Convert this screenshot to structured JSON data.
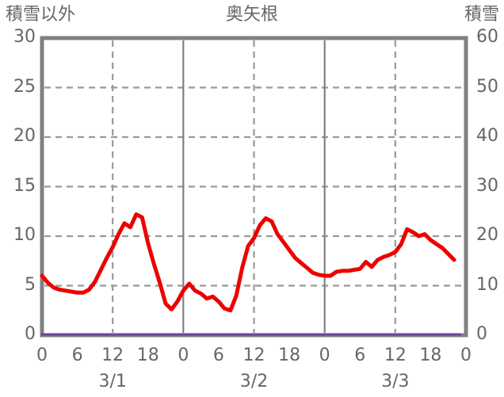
{
  "header": {
    "left_axis_title": "積雪以外",
    "title": "奥矢根",
    "right_axis_title": "積雪"
  },
  "colors": {
    "background": "#ffffff",
    "text": "#666666",
    "border": "#808080",
    "grid_dashed": "#999999",
    "grid_solid": "#808080",
    "precipitation_line": "#ee0000",
    "snow_depth_line": "#7040a0"
  },
  "chart_data": {
    "type": "line",
    "title": "奥矢根",
    "x_hours_span": 72,
    "x_tick_hours": [
      0,
      6,
      12,
      18,
      24,
      30,
      36,
      42,
      48,
      54,
      60,
      66,
      72
    ],
    "x_tick_labels": [
      "0",
      "6",
      "12",
      "18",
      "0",
      "6",
      "12",
      "18",
      "0",
      "6",
      "12",
      "18",
      "0"
    ],
    "date_labels": [
      {
        "label": "3/1",
        "hour": 12
      },
      {
        "label": "3/2",
        "hour": 36
      },
      {
        "label": "3/3",
        "hour": 60
      }
    ],
    "left_axis": {
      "title": "積雪以外",
      "min": 0,
      "max": 30,
      "ticks": [
        0,
        5,
        10,
        15,
        20,
        25,
        30
      ]
    },
    "right_axis": {
      "title": "積雪",
      "min": 0,
      "max": 60,
      "ticks": [
        0,
        10,
        20,
        30,
        40,
        50,
        60
      ]
    },
    "grid": {
      "h_dashed_values": [
        5,
        10,
        15,
        20,
        25
      ],
      "v_dashed_hours": [
        12,
        36,
        60
      ],
      "v_solid_hours": [
        24,
        48
      ]
    },
    "series": [
      {
        "id": "snow-depth",
        "name": "積雪",
        "axis": "right",
        "color": "#7040a0",
        "width": 3,
        "start_hour": 0,
        "values": [
          0,
          0,
          0,
          0,
          0,
          0,
          0,
          0,
          0,
          0,
          0,
          0,
          0,
          0,
          0,
          0,
          0,
          0,
          0,
          0,
          0,
          0,
          0,
          0,
          0,
          0,
          0,
          0,
          0,
          0,
          0,
          0,
          0,
          0,
          0,
          0,
          0,
          0,
          0,
          0,
          0,
          0,
          0,
          0,
          0,
          0,
          0,
          0,
          0,
          0,
          0,
          0,
          0,
          0,
          0,
          0,
          0,
          0,
          0,
          0,
          0,
          0,
          0,
          0,
          0,
          0,
          0,
          0,
          0,
          0,
          0,
          0
        ]
      },
      {
        "id": "precipitation",
        "name": "積雪以外",
        "axis": "left",
        "color": "#ee0000",
        "width": 5,
        "start_hour": 0,
        "values": [
          6.0,
          5.3,
          4.8,
          4.6,
          4.5,
          4.4,
          4.3,
          4.3,
          4.6,
          5.4,
          6.6,
          7.8,
          8.9,
          10.2,
          11.3,
          10.9,
          12.2,
          11.9,
          9.3,
          7.2,
          5.3,
          3.2,
          2.6,
          3.4,
          4.5,
          5.2,
          4.5,
          4.2,
          3.7,
          3.9,
          3.4,
          2.7,
          2.5,
          4.0,
          6.8,
          9.0,
          9.8,
          11.1,
          11.8,
          11.5,
          10.2,
          9.4,
          8.6,
          7.8,
          7.3,
          6.8,
          6.3,
          6.1,
          6.0,
          6.0,
          6.4,
          6.5,
          6.5,
          6.6,
          6.7,
          7.4,
          6.9,
          7.6,
          7.9,
          8.1,
          8.4,
          9.2,
          10.7,
          10.4,
          10.0,
          10.2,
          9.6,
          9.2,
          8.8,
          8.2,
          7.6
        ]
      }
    ]
  }
}
